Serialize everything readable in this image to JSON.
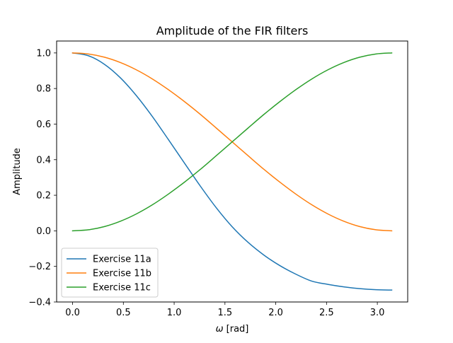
{
  "chart_data": {
    "type": "line",
    "title": "Amplitude of the FIR filters",
    "xlabel": "ω [rad]",
    "xlabel_symbol": "ω",
    "xlabel_unit": " [rad]",
    "ylabel": "Amplitude",
    "xlim": [
      -0.157,
      3.299
    ],
    "ylim": [
      -0.4,
      1.067
    ],
    "xticks": [
      0.0,
      0.5,
      1.0,
      1.5,
      2.0,
      2.5,
      3.0
    ],
    "xtick_labels": [
      "0.0",
      "0.5",
      "1.0",
      "1.5",
      "2.0",
      "2.5",
      "3.0"
    ],
    "yticks": [
      -0.4,
      -0.2,
      0.0,
      0.2,
      0.4,
      0.6,
      0.8,
      1.0
    ],
    "ytick_labels": [
      "−0.4",
      "−0.2",
      "0.0",
      "0.2",
      "0.4",
      "0.6",
      "0.8",
      "1.0"
    ],
    "grid": false,
    "legend_position": "lower-left",
    "x": [
      0.0,
      0.157,
      0.314,
      0.471,
      0.628,
      0.785,
      0.942,
      1.1,
      1.257,
      1.414,
      1.571,
      1.728,
      1.885,
      2.042,
      2.199,
      2.356,
      2.513,
      2.67,
      2.827,
      2.985,
      3.142
    ],
    "series": [
      {
        "name": "Exercise 11a",
        "color": "#1f77b4",
        "values": [
          1.0,
          0.984,
          0.936,
          0.86,
          0.76,
          0.643,
          0.514,
          0.382,
          0.252,
          0.13,
          0.023,
          -0.065,
          -0.137,
          -0.196,
          -0.244,
          -0.283,
          -0.301,
          -0.315,
          -0.325,
          -0.331,
          -0.333
        ]
      },
      {
        "name": "Exercise 11b",
        "color": "#ff7f0e",
        "values": [
          1.0,
          0.994,
          0.976,
          0.946,
          0.905,
          0.854,
          0.794,
          0.727,
          0.655,
          0.578,
          0.5,
          0.422,
          0.345,
          0.273,
          0.206,
          0.146,
          0.095,
          0.054,
          0.024,
          0.006,
          0.0
        ]
      },
      {
        "name": "Exercise 11c",
        "color": "#2ca02c",
        "values": [
          0.0,
          0.006,
          0.024,
          0.054,
          0.095,
          0.146,
          0.206,
          0.273,
          0.345,
          0.422,
          0.5,
          0.578,
          0.655,
          0.727,
          0.794,
          0.854,
          0.905,
          0.946,
          0.976,
          0.994,
          1.0
        ]
      }
    ]
  }
}
